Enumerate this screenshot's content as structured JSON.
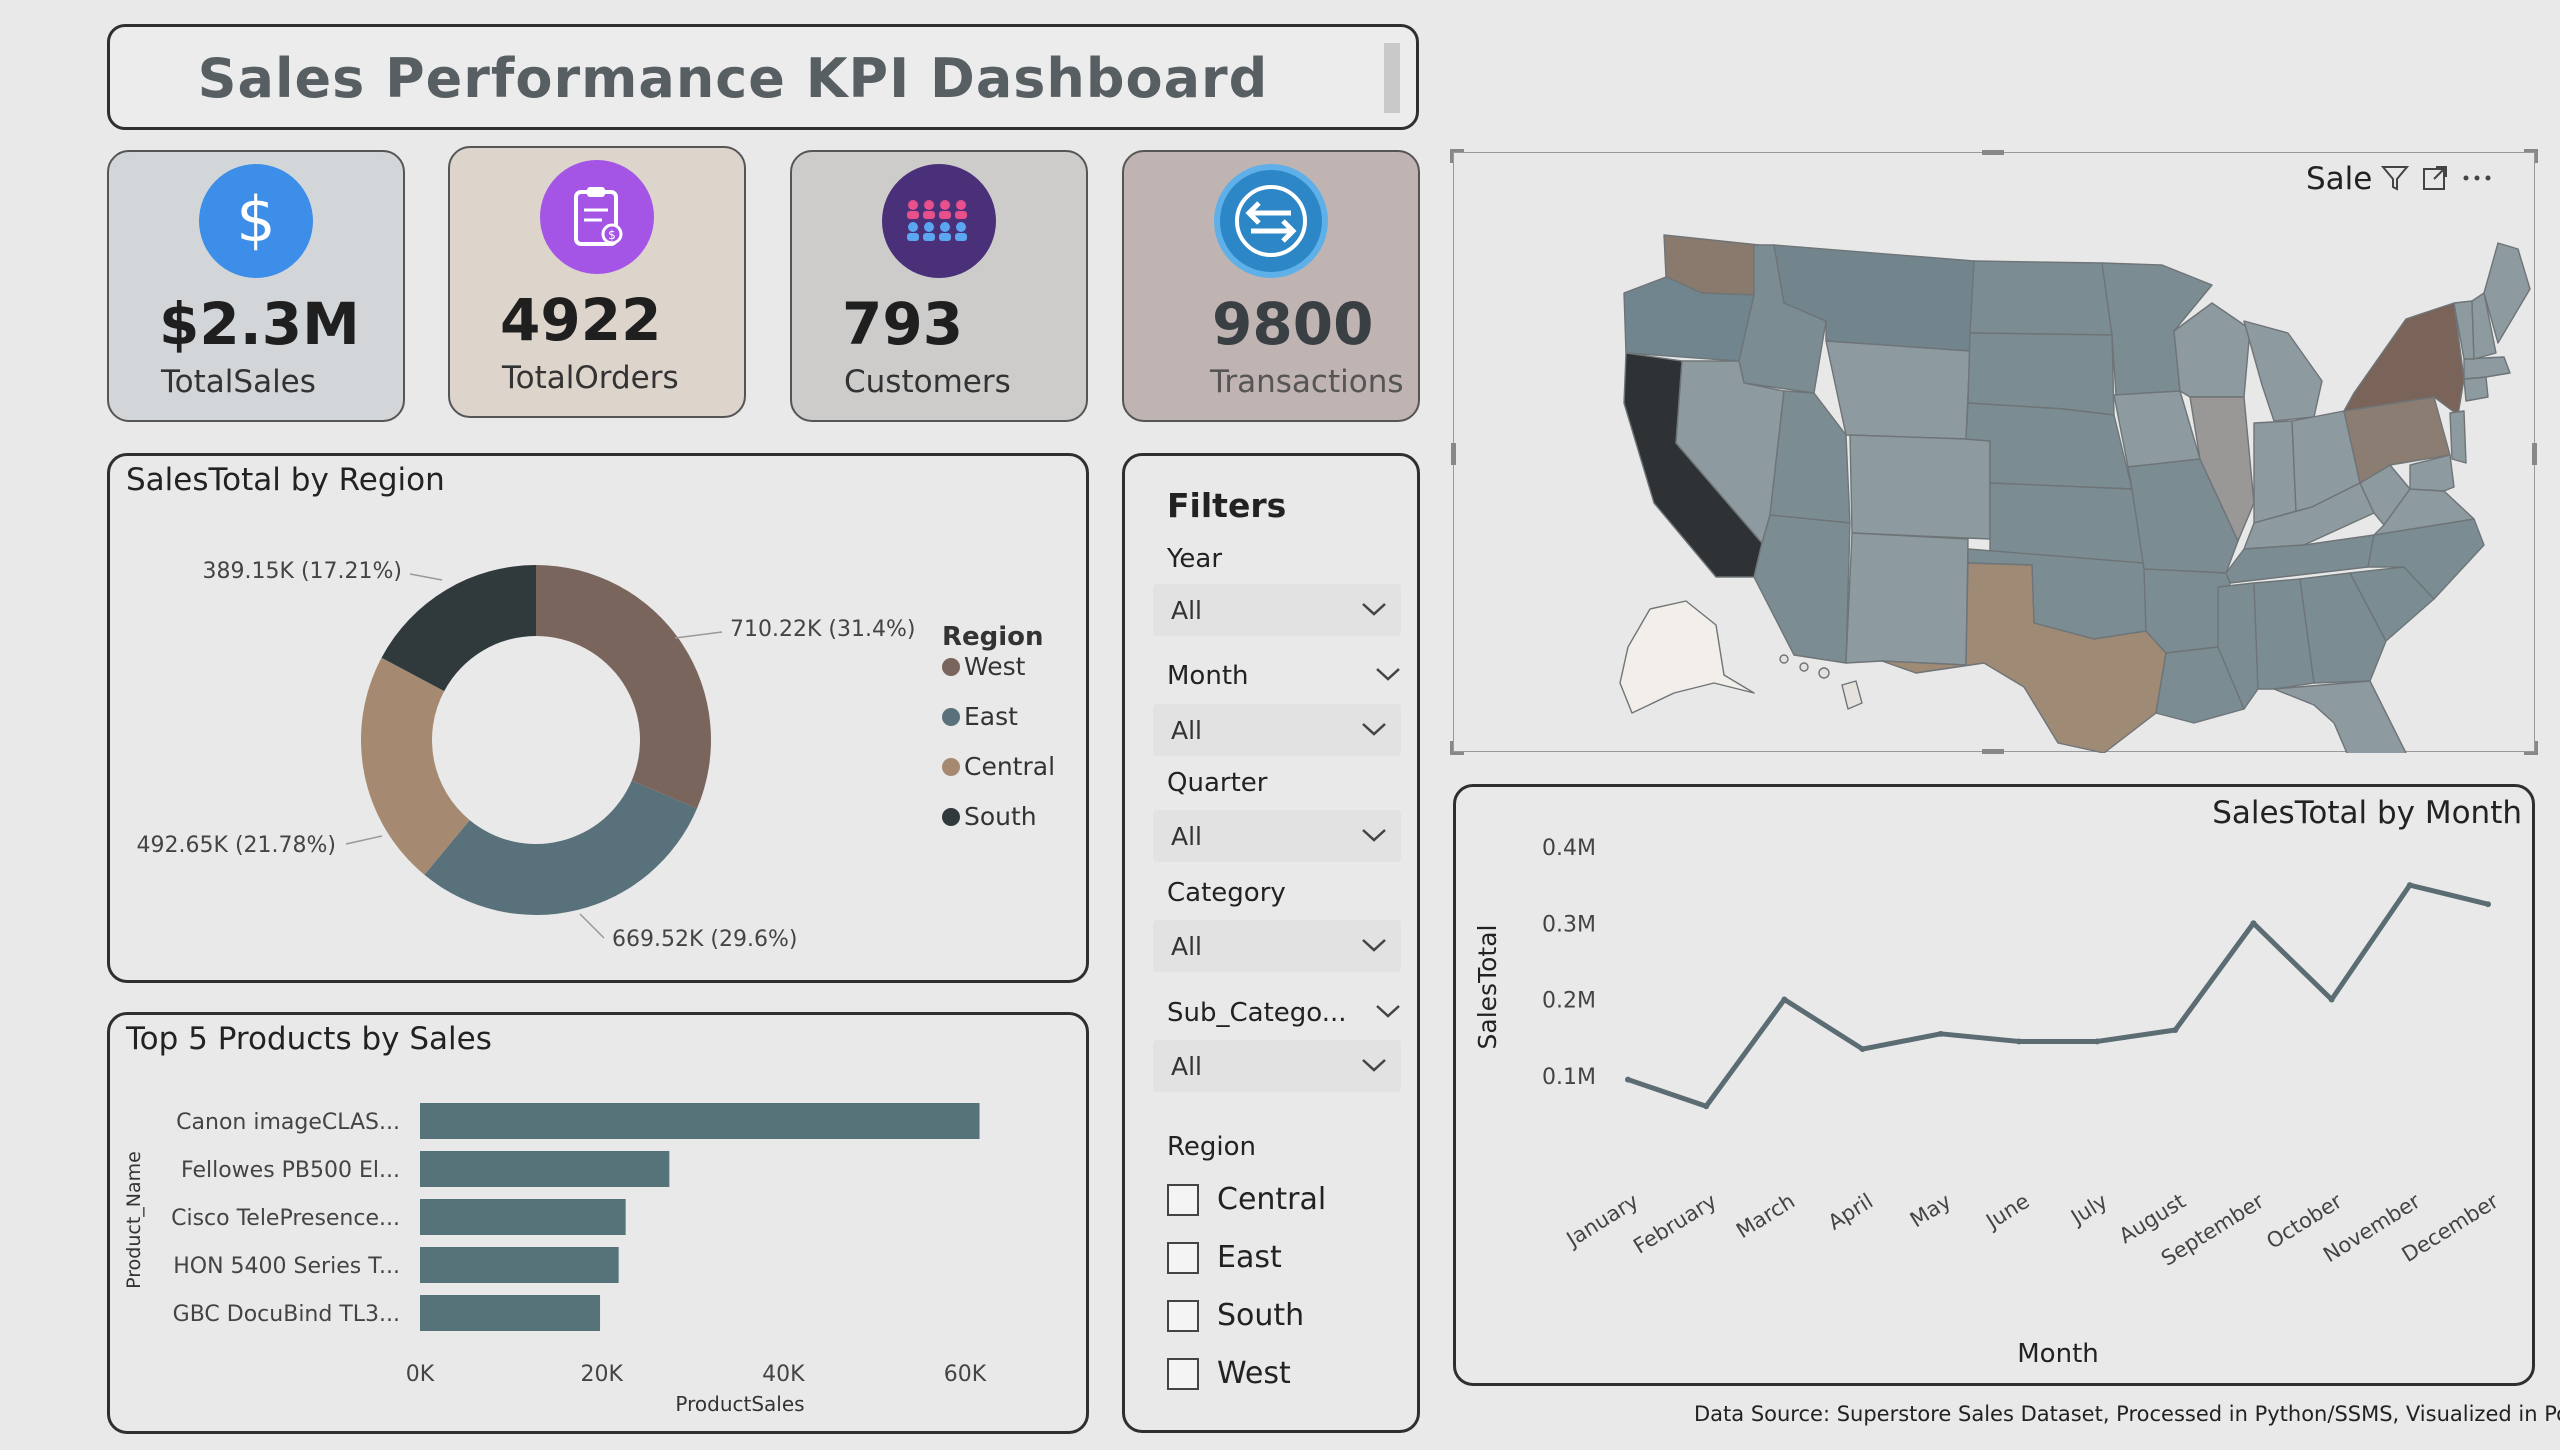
{
  "title": "Sales Performance KPI Dashboard",
  "kpis": [
    {
      "value": "$2.3M",
      "label": "TotalSales",
      "icon": "dollar-icon",
      "bg": "#d3d6d9",
      "icon_bg": "#3d8ee8",
      "val_color": "#1f1f1f",
      "lbl_color": "#333"
    },
    {
      "value": "4922",
      "label": "TotalOrders",
      "icon": "clipboard-icon",
      "bg": "#ddd4cc",
      "icon_bg": "#a455e6",
      "val_color": "#1f1f1f",
      "lbl_color": "#333"
    },
    {
      "value": "793",
      "label": "Customers",
      "icon": "people-group-icon",
      "bg": "#cdcccb",
      "icon_bg": "#4a3079",
      "val_color": "#1f1f1f",
      "lbl_color": "#333"
    },
    {
      "value": "9800",
      "label": "Transactions",
      "icon": "exchange-arrows-icon",
      "bg": "#bfb4b1",
      "icon_bg": "#2d86c6",
      "val_color": "#3a3f44",
      "lbl_color": "#555"
    }
  ],
  "region_donut": {
    "title": "SalesTotal by Region",
    "legend_title": "Region",
    "chart_data": {
      "type": "pie",
      "slices": [
        {
          "name": "West",
          "value": 710.22,
          "label": "710.22K (31.4%)",
          "color": "#7a655c"
        },
        {
          "name": "East",
          "value": 669.52,
          "label": "669.52K (29.6%)",
          "color": "#58717a"
        },
        {
          "name": "Central",
          "value": 492.65,
          "label": "492.65K (21.78%)",
          "color": "#a58a71"
        },
        {
          "name": "South",
          "value": 389.15,
          "label": "389.15K (17.21%)",
          "color": "#303a3d"
        }
      ]
    }
  },
  "top_products": {
    "title": "Top 5 Products by Sales",
    "chart_data": {
      "type": "bar",
      "orientation": "horizontal",
      "categories": [
        "Canon imageCLAS...",
        "Fellowes PB500 El...",
        "Cisco TelePresence...",
        "HON 5400 Series T...",
        "GBC DocuBind TL3..."
      ],
      "values": [
        61600,
        27450,
        22640,
        21870,
        19820
      ],
      "xlabel": "ProductSales",
      "ylabel": "Product_Name",
      "xticks": [
        "0K",
        "20K",
        "40K",
        "60K"
      ],
      "xlim": [
        0,
        60000
      ],
      "bar_color": "#56737a"
    }
  },
  "filters": {
    "title": "Filters",
    "year": {
      "label": "Year",
      "value": "All"
    },
    "month": {
      "label": "Month",
      "value": "All"
    },
    "quarter": {
      "label": "Quarter",
      "value": "All"
    },
    "category": {
      "label": "Category",
      "value": "All"
    },
    "sub_category": {
      "label": "Sub_Catego...",
      "value": "All"
    },
    "region": {
      "label": "Region",
      "options": [
        "Central",
        "East",
        "South",
        "West"
      ]
    }
  },
  "map": {
    "title": "Sale"
  },
  "monthly": {
    "title": "SalesTotal by Month",
    "chart_data": {
      "type": "line",
      "x": [
        "January",
        "February",
        "March",
        "April",
        "May",
        "June",
        "July",
        "August",
        "September",
        "October",
        "November",
        "December"
      ],
      "values": [
        0.095,
        0.06,
        0.2,
        0.135,
        0.155,
        0.145,
        0.145,
        0.16,
        0.3,
        0.2,
        0.35,
        0.325
      ],
      "yticks": [
        "0.1M",
        "0.2M",
        "0.3M",
        "0.4M"
      ],
      "ylim": [
        0,
        0.4
      ],
      "xlabel": "Month",
      "ylabel": "SalesTotal",
      "line_color": "#5b6c73"
    }
  },
  "footer": "Data Source: Superstore Sales Dataset, Processed in Python/SSMS, Visualized in Power BI"
}
